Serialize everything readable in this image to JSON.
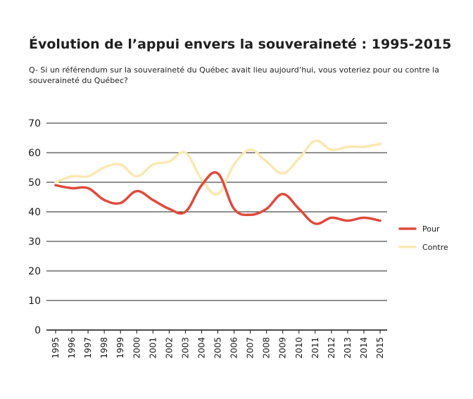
{
  "chart_data": {
    "type": "line",
    "title": "Évolution de l’appui envers la souveraineté : 1995-2015",
    "subtitle": "Q- Si un référendum sur la souveraineté du Québec avait lieu aujourd’hui, vous voteriez pour ou contre la souveraineté du Québec?",
    "xlabel": "",
    "ylabel": "",
    "x": [
      1995,
      1996,
      1997,
      1998,
      1999,
      2000,
      2001,
      2002,
      2003,
      2004,
      2005,
      2006,
      2007,
      2008,
      2009,
      2010,
      2011,
      2012,
      2013,
      2014,
      2015
    ],
    "xticklabels": [
      "1995",
      "1996",
      "1997",
      "1998",
      "1999",
      "2000",
      "2001",
      "2002",
      "2003",
      "2004",
      "2005",
      "2006",
      "2007",
      "2008",
      "2009",
      "2010",
      "2011",
      "2012",
      "2013",
      "2014",
      "2015"
    ],
    "ylim": [
      0,
      70
    ],
    "yticks": [
      0,
      10,
      20,
      30,
      40,
      50,
      60,
      70
    ],
    "grid": "horizontal",
    "legend_position": "right",
    "series": [
      {
        "name": "Pour",
        "color": "#e04a3c",
        "values": [
          49,
          48,
          48,
          44,
          43,
          47,
          44,
          41,
          40,
          49,
          53,
          41,
          39,
          41,
          46,
          41,
          36,
          38,
          37,
          38,
          37
        ]
      },
      {
        "name": "Contre",
        "color": "#fbe8b2",
        "values": [
          50,
          52,
          52,
          55,
          56,
          52,
          56,
          57,
          60,
          51,
          46,
          56,
          61,
          57,
          53,
          58,
          64,
          61,
          62,
          62,
          63
        ]
      }
    ]
  }
}
